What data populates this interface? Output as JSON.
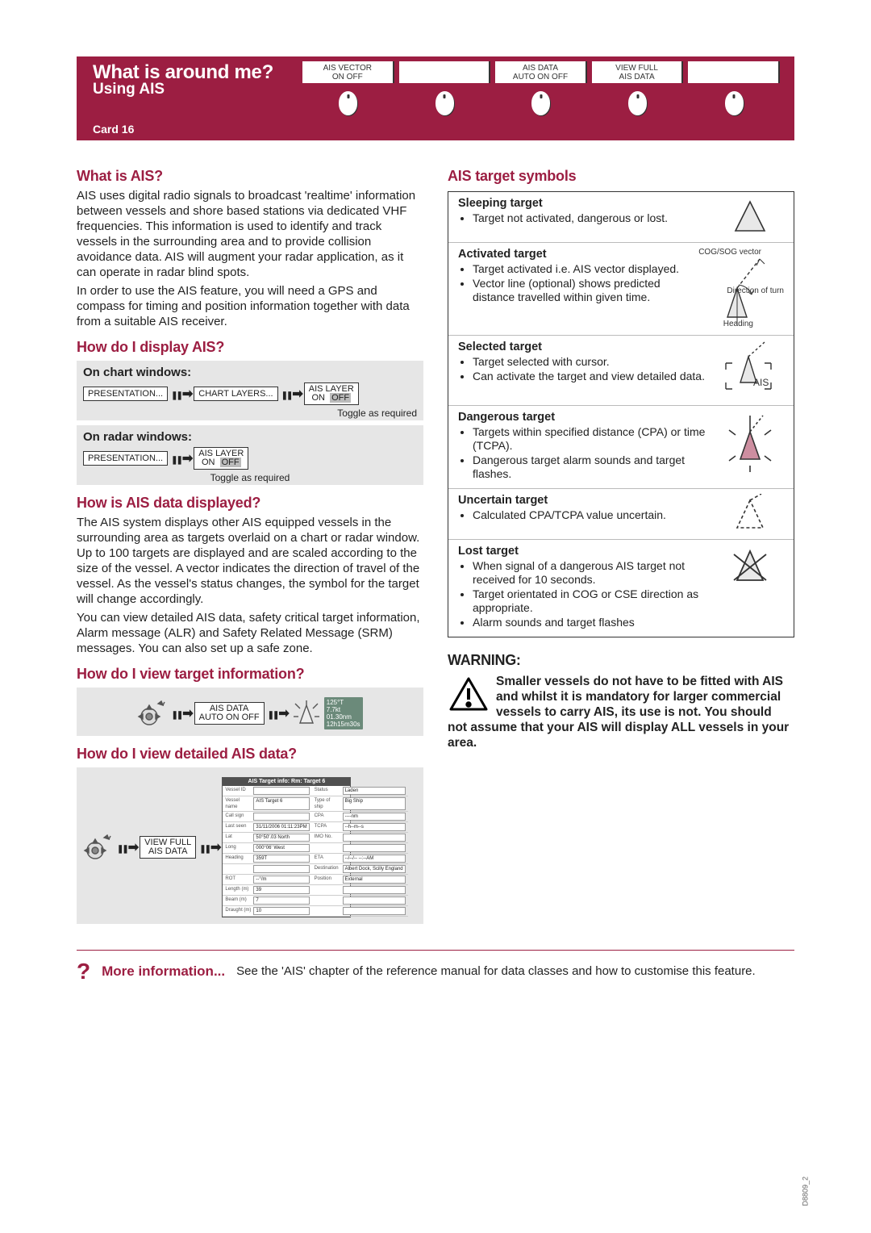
{
  "header": {
    "title": "What is around me?",
    "subtitle": "Using AIS",
    "card": "Card 16",
    "softkeys": [
      {
        "line1": "AIS  VECTOR",
        "line2": "ON    OFF"
      },
      {
        "line1": "",
        "line2": ""
      },
      {
        "line1": "AIS DATA",
        "line2": "AUTO ON OFF"
      },
      {
        "line1": "VIEW FULL",
        "line2": "AIS DATA"
      },
      {
        "line1": "",
        "line2": ""
      }
    ]
  },
  "left": {
    "what_title": "What is AIS?",
    "what_p1": "AIS uses digital radio signals to broadcast 'realtime' information between vessels and shore based stations via dedicated VHF frequencies. This information is used to identify and track vessels in the surrounding area and to provide  collision avoidance data. AIS will augment your radar application, as it can operate in radar blind spots.",
    "what_p2": "In order to use the AIS feature, you will need a GPS and compass for timing and position information together with data from a suitable AIS receiver.",
    "display_title": "How do I display AIS?",
    "chart_windows": "On chart windows:",
    "radar_windows": "On radar windows:",
    "btn_presentation": "PRESENTATION...",
    "btn_chart_layers": "CHART LAYERS...",
    "btn_ais_layer": "AIS LAYER",
    "on": "ON",
    "off": "OFF",
    "toggle_note": "Toggle as required",
    "data_disp_title": "How is AIS data displayed?",
    "data_disp_p1": "The AIS system displays other AIS equipped vessels in the surrounding area as targets overlaid on a chart or radar window. Up to 100 targets are displayed and are scaled according to the size of the vessel. A vector indicates the direction of travel of the vessel. As the vessel's status changes, the symbol for the target will change accordingly.",
    "data_disp_p2": "You can view detailed AIS data, safety critical target information, Alarm message (ALR) and Safety Related Message (SRM) messages. You can also set up a safe zone.",
    "view_target_title": "How do I view target information?",
    "btn_ais_data": "AIS DATA",
    "btn_auto_onoff": "AUTO ON OFF",
    "databadge": {
      "l1": "125°T",
      "l2": "7.7kt",
      "l3": "01.30nm",
      "l4": "12h15m30s"
    },
    "view_detailed_title": "How do I view detailed AIS data?",
    "btn_view_full": "VIEW FULL",
    "btn_ais_data2": "AIS DATA",
    "ais_table": {
      "title": "AIS Target info: Rm: Target 6",
      "rows": [
        [
          "Vessel ID",
          "",
          "Status",
          "Laden"
        ],
        [
          "Vessel name",
          "AIS Target 6",
          "Type of ship",
          "Big Ship"
        ],
        [
          "Call sign",
          "",
          "CPA",
          "----nm"
        ],
        [
          "Last seen",
          "31/11/2006 01:11:23PM",
          "TCPA",
          "--h--m--s"
        ],
        [
          "Lat",
          "50°50'.03 North",
          "IMO No.",
          ""
        ],
        [
          "Long",
          "000°06' West",
          "",
          ""
        ],
        [
          "Heading",
          "359T",
          "ETA",
          "--/--/-- --:--AM"
        ],
        [
          "",
          "",
          "Destination",
          "Albert Dock, Scilly England"
        ],
        [
          "ROT",
          "--°/m",
          "Position",
          "External"
        ],
        [
          "Length (m)",
          "39",
          "",
          ""
        ],
        [
          "Beam (m)",
          "7",
          "",
          ""
        ],
        [
          "Draught (m)",
          "10",
          "",
          ""
        ]
      ]
    }
  },
  "right": {
    "symbols_title": "AIS target symbols",
    "symbols": [
      {
        "title": "Sleeping target",
        "bullets": [
          "Target not activated, dangerous or lost."
        ]
      },
      {
        "title": "Activated target",
        "bullets": [
          "Target activated i.e. AIS vector displayed.",
          "Vector line (optional) shows predicted distance travelled within given time."
        ],
        "labels": {
          "cogsog": "COG/SOG vector",
          "dir": "Direction of turn",
          "heading": "Heading"
        }
      },
      {
        "title": "Selected target",
        "bullets": [
          "Target selected with cursor.",
          "Can activate the target and view detailed data."
        ],
        "caption": "AIS"
      },
      {
        "title": "Dangerous target",
        "bullets": [
          "Targets within specified distance (CPA) or time (TCPA).",
          "Dangerous target alarm sounds and target flashes."
        ]
      },
      {
        "title": "Uncertain target",
        "bullets": [
          "Calculated CPA/TCPA value uncertain."
        ]
      },
      {
        "title": "Lost target",
        "bullets": [
          "When signal of a dangerous AIS target not received for 10 seconds.",
          "Target orientated in COG or CSE direction as appropriate.",
          "Alarm sounds and target flashes"
        ]
      }
    ],
    "warning_title": "WARNING",
    "warning_body": "Smaller vessels do not have to be fitted with AIS and whilst it is mandatory for larger commercial vessels to carry AIS, its use is not. You should not  assume that your AIS will display ALL vessels in your area."
  },
  "moreinfo": {
    "label": "More information...",
    "text": "See the 'AIS' chapter of the reference manual for data classes and how to customise this feature."
  },
  "doccode": "D8809_2"
}
